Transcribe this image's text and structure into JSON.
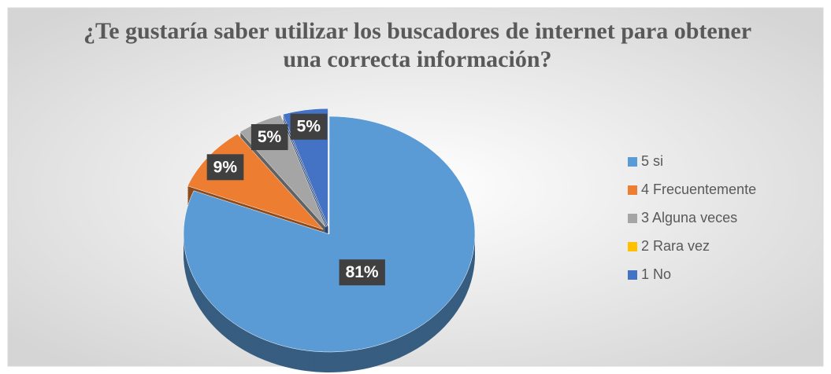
{
  "chart_data": {
    "type": "pie",
    "title": "¿Te gustaría saber utilizar los buscadores de internet para obtener una correcta información?",
    "categories": [
      "5 si",
      "4 Frecuentemente",
      "3 Alguna veces",
      "2 Rara vez",
      "1 No"
    ],
    "values": [
      81,
      9,
      5,
      0,
      5
    ],
    "value_labels": [
      "81%",
      "9%",
      "5%",
      null,
      "5%"
    ],
    "colors": [
      "#5b9bd5",
      "#ed7d31",
      "#a5a5a5",
      "#ffc000",
      "#4472c4"
    ],
    "legend": "right"
  }
}
